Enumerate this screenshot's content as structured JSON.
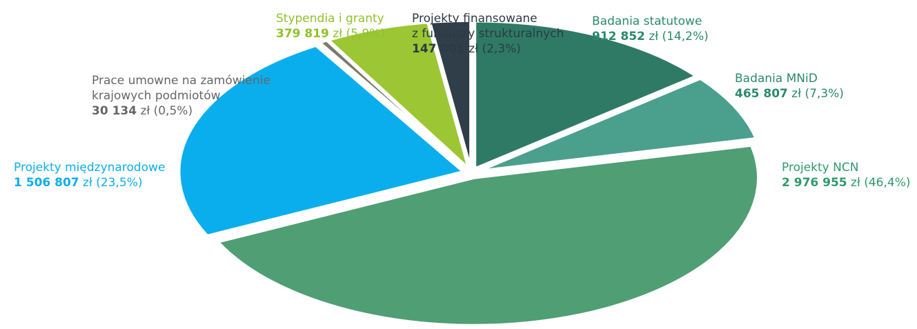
{
  "chart_data": {
    "type": "pie",
    "title": "",
    "currency": "zł",
    "slices": [
      {
        "name": "Badania statutowe",
        "name_lines": [
          "Badania statutowe"
        ],
        "value": 912852,
        "value_text": "912 852",
        "percent_text": "(14,2%)",
        "color": "#2f7a65",
        "label_color": "#2a8a6b"
      },
      {
        "name": "Badania MNiD",
        "name_lines": [
          "Badania MNiD"
        ],
        "value": 465807,
        "value_text": "465 807",
        "percent_text": "(7,3%)",
        "color": "#4aa08d",
        "label_color": "#2a8a6b"
      },
      {
        "name": "Projekty NCN",
        "name_lines": [
          "Projekty NCN"
        ],
        "value": 2976955,
        "value_text": "2 976 955",
        "percent_text": "(46,4%)",
        "color": "#4f9e74",
        "label_color": "#2f9a6b"
      },
      {
        "name": "Projekty międzynarodowe",
        "name_lines": [
          "Projekty międzynarodowe"
        ],
        "value": 1506807,
        "value_text": "1 506 807",
        "percent_text": "(23,5%)",
        "color": "#0aaeed",
        "label_color": "#0aaeed"
      },
      {
        "name": "Prace umowne na zamówienie krajowych podmiotów",
        "name_lines": [
          "Prace umowne na zamówienie",
          "krajowych podmiotów"
        ],
        "value": 30134,
        "value_text": "30 134",
        "percent_text": "(0,5%)",
        "color": "#7a7a6c",
        "label_color": "#666666"
      },
      {
        "name": "Stypendia i granty",
        "name_lines": [
          "Stypendia i granty"
        ],
        "value": 379819,
        "value_text": "379 819",
        "percent_text": "(5,9%)",
        "color": "#9cc634",
        "label_color": "#8fc22a"
      },
      {
        "name": "Projekty finansowane z funduszy strukturalnych",
        "name_lines": [
          "Projekty finansowane",
          "z funduszy strukturalnych"
        ],
        "value": 147001,
        "value_text": "147 001",
        "percent_text": "(2,3%)",
        "color": "#303e4a",
        "label_color": "#2b3a44"
      }
    ]
  }
}
